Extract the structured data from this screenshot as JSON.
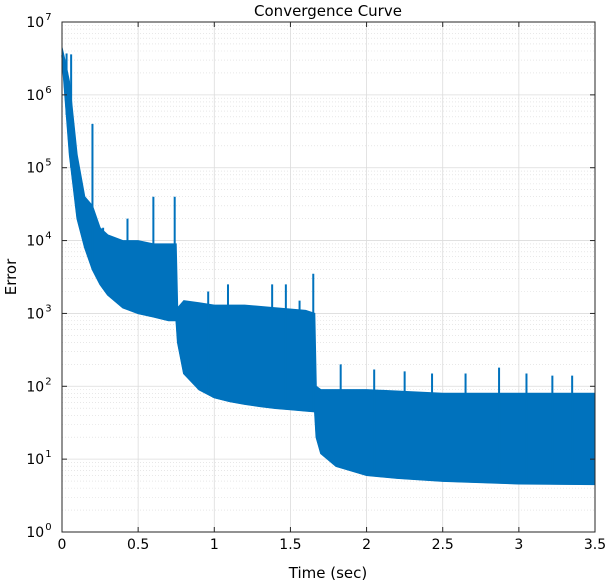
{
  "chart_data": {
    "type": "line",
    "title": "Convergence Curve",
    "xlabel": "Time (sec)",
    "ylabel": "Error",
    "xlim": [
      0,
      3.5
    ],
    "ylim": [
      1,
      10000000
    ],
    "yscale": "log",
    "grid": true,
    "minor_grid": true,
    "x_ticks": [
      "0",
      "0.5",
      "1",
      "1.5",
      "2",
      "2.5",
      "3",
      "3.5"
    ],
    "y_ticks": [
      {
        "base": "10",
        "exp": "0"
      },
      {
        "base": "10",
        "exp": "1"
      },
      {
        "base": "10",
        "exp": "2"
      },
      {
        "base": "10",
        "exp": "3"
      },
      {
        "base": "10",
        "exp": "4"
      },
      {
        "base": "10",
        "exp": "5"
      },
      {
        "base": "10",
        "exp": "6"
      },
      {
        "base": "10",
        "exp": "7"
      }
    ],
    "series": [
      {
        "color": "#0072BD",
        "lower_envelope": {
          "x": [
            0.0,
            0.02,
            0.05,
            0.1,
            0.15,
            0.2,
            0.25,
            0.3,
            0.4,
            0.5,
            0.6,
            0.7,
            0.75,
            0.76,
            0.8,
            0.9,
            1.0,
            1.1,
            1.2,
            1.3,
            1.4,
            1.5,
            1.6,
            1.66,
            1.67,
            1.7,
            1.8,
            2.0,
            2.2,
            2.5,
            3.0,
            3.5
          ],
          "y": [
            3500000,
            1000000,
            150000,
            20000,
            8000,
            4000,
            2500,
            1800,
            1200,
            1000,
            900,
            800,
            800,
            400,
            150,
            90,
            70,
            62,
            57,
            53,
            50,
            48,
            46,
            45,
            20,
            12,
            8,
            6,
            5.5,
            5,
            4.6,
            4.5
          ]
        },
        "upper_envelope": {
          "x": [
            0.0,
            0.02,
            0.05,
            0.1,
            0.15,
            0.2,
            0.25,
            0.3,
            0.4,
            0.5,
            0.6,
            0.7,
            0.75,
            0.76,
            0.8,
            0.9,
            1.0,
            1.2,
            1.4,
            1.6,
            1.66,
            1.67,
            1.7,
            2.0,
            2.5,
            3.0,
            3.5
          ],
          "y": [
            4500000,
            3000000,
            1500000,
            150000,
            40000,
            30000,
            15000,
            12000,
            10000,
            10000,
            9000,
            9000,
            9000,
            1200,
            1500,
            1400,
            1300,
            1300,
            1200,
            1100,
            1000,
            100,
            90,
            90,
            80,
            80,
            80
          ]
        },
        "spikes": [
          {
            "x": 0.03,
            "y": 3700000
          },
          {
            "x": 0.06,
            "y": 3600000
          },
          {
            "x": 0.2,
            "y": 400000
          },
          {
            "x": 0.27,
            "y": 15000
          },
          {
            "x": 0.43,
            "y": 20000
          },
          {
            "x": 0.6,
            "y": 40000
          },
          {
            "x": 0.74,
            "y": 40000
          },
          {
            "x": 0.96,
            "y": 2000
          },
          {
            "x": 1.09,
            "y": 2500
          },
          {
            "x": 1.38,
            "y": 2500
          },
          {
            "x": 1.47,
            "y": 2500
          },
          {
            "x": 1.56,
            "y": 1500
          },
          {
            "x": 1.65,
            "y": 3500
          },
          {
            "x": 1.83,
            "y": 200
          },
          {
            "x": 2.05,
            "y": 170
          },
          {
            "x": 2.25,
            "y": 160
          },
          {
            "x": 2.43,
            "y": 150
          },
          {
            "x": 2.65,
            "y": 150
          },
          {
            "x": 2.87,
            "y": 180
          },
          {
            "x": 3.05,
            "y": 150
          },
          {
            "x": 3.22,
            "y": 140
          },
          {
            "x": 3.35,
            "y": 140
          }
        ]
      }
    ]
  }
}
